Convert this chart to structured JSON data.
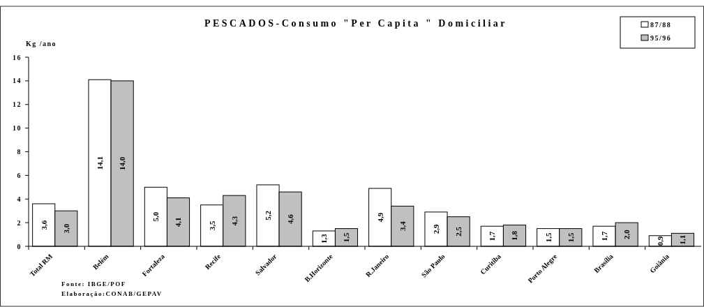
{
  "chart_data": {
    "type": "bar",
    "title": "PESCADOS-Consumo \"Per Capita \" Domiciliar",
    "ylabel": "Kg /ano",
    "categories": [
      "Total RM",
      "Belém",
      "Fortaleza",
      "Recife",
      "Salvador",
      "B.Horizonte",
      "R.Janeiro",
      "São Paulo",
      "Curitiba",
      "Porto Alegre",
      "Brasília",
      "Goiânia"
    ],
    "series": [
      {
        "name": "87/88",
        "color": "#ffffff",
        "values": [
          3.6,
          14.1,
          5.0,
          3.5,
          5.2,
          1.3,
          4.9,
          2.9,
          1.7,
          1.5,
          1.7,
          0.9
        ],
        "value_labels": [
          "3,6",
          "14,1",
          "5,0",
          "3,5",
          "5,2",
          "1,3",
          "4,9",
          "2,9",
          "1,7",
          "1,5",
          "1,7",
          "0,9"
        ]
      },
      {
        "name": "95/96",
        "color": "#c0c0c0",
        "values": [
          3.0,
          14.0,
          4.1,
          4.3,
          4.6,
          1.5,
          3.4,
          2.5,
          1.8,
          1.5,
          2.0,
          1.1
        ],
        "value_labels": [
          "3,0",
          "14,0",
          "4,1",
          "4,3",
          "4,6",
          "1,5",
          "3,4",
          "2,5",
          "1,8",
          "1,5",
          "2,0",
          "1,1"
        ]
      }
    ],
    "ylim": [
      0,
      16
    ],
    "yticks": [
      0,
      2,
      4,
      6,
      8,
      10,
      12,
      14,
      16
    ],
    "grid": false,
    "legend": "top right",
    "annotations": [
      "Fonte: IBGE/POF",
      "Elaboração:CONAB/GEPAV"
    ]
  }
}
